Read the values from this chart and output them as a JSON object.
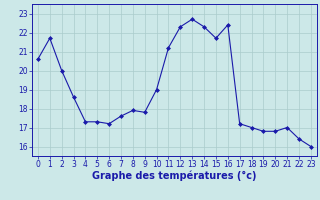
{
  "x": [
    0,
    1,
    2,
    3,
    4,
    5,
    6,
    7,
    8,
    9,
    10,
    11,
    12,
    13,
    14,
    15,
    16,
    17,
    18,
    19,
    20,
    21,
    22,
    23
  ],
  "y": [
    20.6,
    21.7,
    20.0,
    18.6,
    17.3,
    17.3,
    17.2,
    17.6,
    17.9,
    17.8,
    19.0,
    21.2,
    22.3,
    22.7,
    22.3,
    21.7,
    22.4,
    17.2,
    17.0,
    16.8,
    16.8,
    17.0,
    16.4,
    16.0
  ],
  "line_color": "#1a1aaa",
  "marker": "D",
  "marker_size": 2.0,
  "bg_color": "#cce8e8",
  "grid_color": "#aacccc",
  "xlabel": "Graphe des températures (°c)",
  "ylim": [
    15.5,
    23.5
  ],
  "xlim": [
    -0.5,
    23.5
  ],
  "yticks": [
    16,
    17,
    18,
    19,
    20,
    21,
    22,
    23
  ],
  "xticks": [
    0,
    1,
    2,
    3,
    4,
    5,
    6,
    7,
    8,
    9,
    10,
    11,
    12,
    13,
    14,
    15,
    16,
    17,
    18,
    19,
    20,
    21,
    22,
    23
  ],
  "tick_fontsize": 5.5,
  "xlabel_fontsize": 7.0
}
